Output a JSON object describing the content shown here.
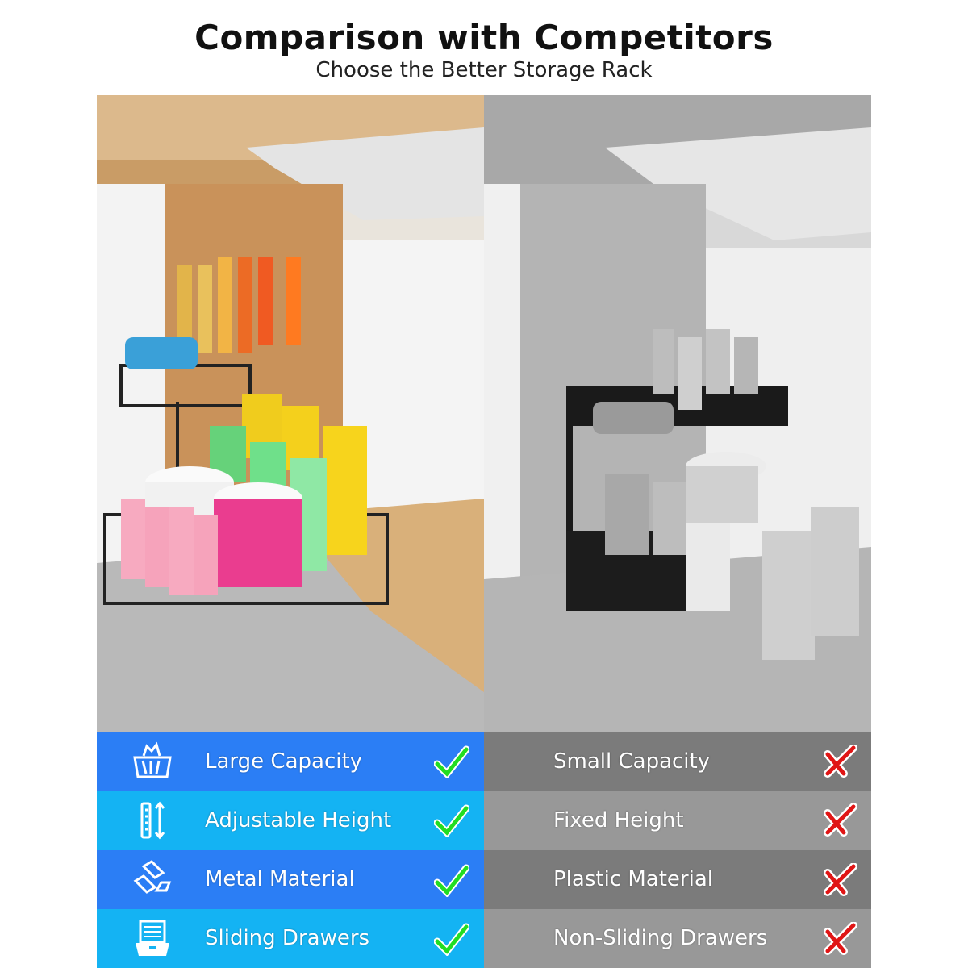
{
  "header": {
    "title": "Comparison with Competitors",
    "subtitle": "Choose the Better Storage Rack"
  },
  "colors": {
    "ours_dark": "#2b7ef5",
    "ours_light": "#14b3f3",
    "theirs_dark": "#7b7b7b",
    "theirs_light": "#989898",
    "check": "#22dd22",
    "cross": "#e01515"
  },
  "ours": {
    "image": "photo-metal-sliding-rack-color",
    "features": [
      {
        "label": "Large Capacity",
        "icon": "basket-icon",
        "mark": "check-icon"
      },
      {
        "label": "Adjustable Height",
        "icon": "ruler-arrows-icon",
        "mark": "check-icon"
      },
      {
        "label": "Metal Material",
        "icon": "metal-bars-icon",
        "mark": "check-icon"
      },
      {
        "label": "Sliding Drawers",
        "icon": "drawer-icon",
        "mark": "check-icon"
      }
    ]
  },
  "competitor": {
    "image": "photo-plastic-rack-grayscale",
    "features": [
      {
        "label": "Small Capacity",
        "mark": "cross-icon"
      },
      {
        "label": "Fixed Height",
        "mark": "cross-icon"
      },
      {
        "label": "Plastic Material",
        "mark": "cross-icon"
      },
      {
        "label": "Non-Sliding Drawers",
        "mark": "cross-icon"
      }
    ]
  }
}
